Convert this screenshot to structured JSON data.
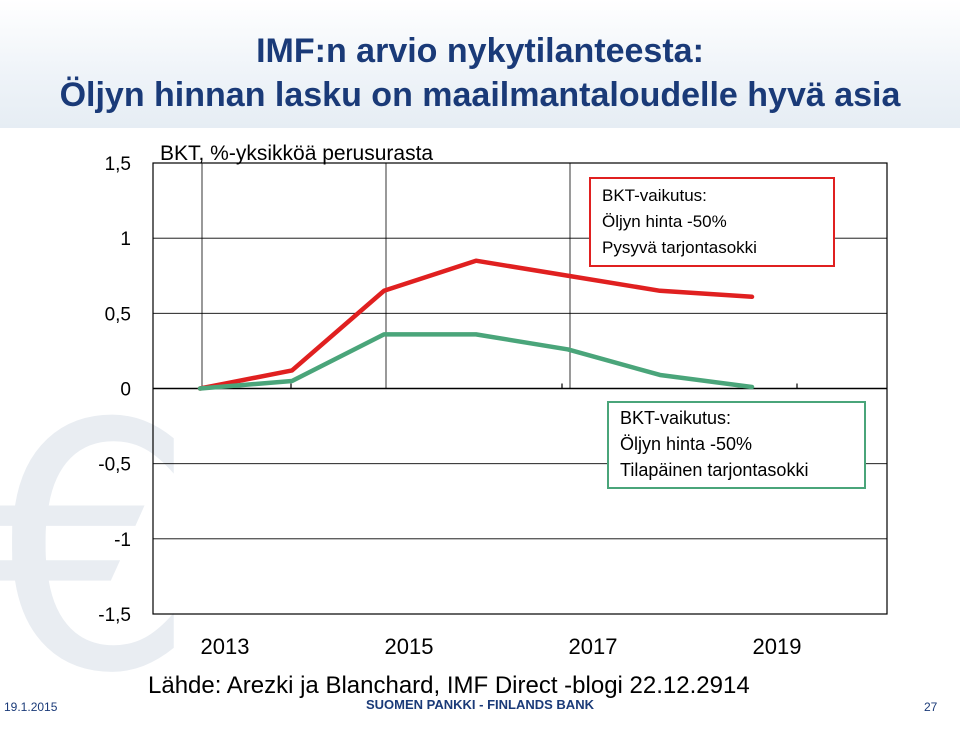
{
  "slide": {
    "title_line1": "IMF:n arvio nykytilanteesta:",
    "title_line2": "Öljyn hinnan lasku on maailmantaloudelle hyvä asia",
    "source": "Lähde: Arezki ja Blanchard, IMF Direct -blogi 22.12.2914",
    "footer_date": "19.1.2015",
    "footer_brand": "SUOMEN PANKKI - FINLANDS BANK",
    "page_number": "27",
    "watermark_icon": "euro-icon"
  },
  "chart_data": {
    "type": "line",
    "title": "BKT, %-yksikköä perusurasta",
    "x": [
      2013,
      2014,
      2015,
      2016,
      2017,
      2018,
      2019
    ],
    "x_tick_labels": [
      "2013",
      "2015",
      "2017",
      "2019"
    ],
    "y_tick_labels": [
      "1,5",
      "1",
      "0,5",
      "0",
      "-0,5",
      "-1",
      "-1,5"
    ],
    "ylim": [
      -1.5,
      1.5
    ],
    "grid": true,
    "series": [
      {
        "values": [
          0,
          0.12,
          0.65,
          0.85,
          0.75,
          0.65,
          0.61
        ],
        "color": "#e02020",
        "annotation": [
          "BKT-vaikutus:",
          "Öljyn hinta  -50%",
          "Pysyvä tarjontasokki"
        ],
        "annotation_position": "top-right"
      },
      {
        "values": [
          0,
          0.05,
          0.36,
          0.36,
          0.26,
          0.09,
          0.01
        ],
        "color": "#4aa57a",
        "annotation": [
          "BKT-vaikutus:",
          "Öljyn hinta  -50%",
          "Tilapäinen tarjontasokki"
        ],
        "annotation_position": "middle-right"
      }
    ]
  }
}
